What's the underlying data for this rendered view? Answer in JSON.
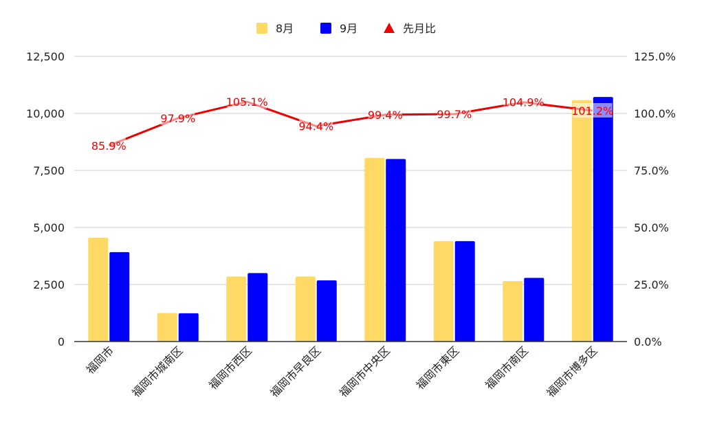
{
  "chart_data": {
    "type": "bar",
    "categories": [
      "福岡市",
      "福岡市城南区",
      "福岡市西区",
      "福岡市早良区",
      "福岡市中央区",
      "福岡市東区",
      "福岡市南区",
      "福岡市博多区"
    ],
    "series": [
      {
        "name": "8月",
        "kind": "bar",
        "axis": "left",
        "color": "#ffd966",
        "values": [
          4550,
          1250,
          2850,
          2850,
          8050,
          4400,
          2650,
          10580
        ]
      },
      {
        "name": "9月",
        "kind": "bar",
        "axis": "left",
        "color": "#0000ff",
        "values": [
          3920,
          1240,
          3000,
          2680,
          8000,
          4400,
          2790,
          10720
        ]
      },
      {
        "name": "先月比",
        "kind": "line",
        "axis": "right",
        "color": "#ee0000",
        "values": [
          85.9,
          97.9,
          105.1,
          94.4,
          99.4,
          99.7,
          104.9,
          101.2
        ],
        "labels": [
          "85.9%",
          "97.9%",
          "105.1%",
          "94.4%",
          "99.4%",
          "99.7%",
          "104.9%",
          "101.2%"
        ]
      }
    ],
    "y_left": {
      "min": 0,
      "max": 12500,
      "ticks": [
        "0",
        "2,500",
        "5,000",
        "7,500",
        "10,000",
        "12,500"
      ],
      "tick_values": [
        0,
        2500,
        5000,
        7500,
        10000,
        12500
      ]
    },
    "y_right": {
      "min": 0,
      "max": 125,
      "ticks": [
        "0.0%",
        "25.0%",
        "50.0%",
        "75.0%",
        "100.0%",
        "125.0%"
      ],
      "tick_values": [
        0,
        25,
        50,
        75,
        100,
        125
      ]
    },
    "legend": {
      "position": "top",
      "items": [
        "8月",
        "9月",
        "先月比"
      ]
    },
    "grid": true
  }
}
